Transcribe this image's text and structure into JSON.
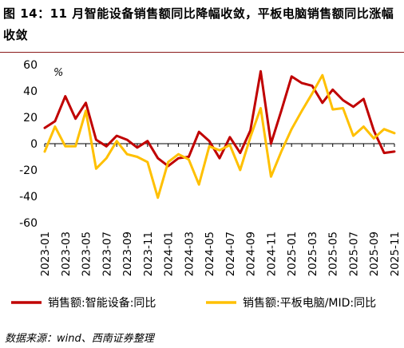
{
  "header": {
    "title": "图 14：11 月智能设备销售额同比降幅收敛，平板电脑销售额同比涨幅收敛"
  },
  "footer": {
    "source": "数据来源：wind、西南证券整理"
  },
  "colors": {
    "series_smart": "#c00000",
    "series_tablet": "#ffc000",
    "title_rule": "#8b1a1a"
  },
  "chart_data": {
    "type": "line",
    "unit_label": "%",
    "ylim": [
      -60,
      60
    ],
    "yticks": [
      60,
      40,
      20,
      0,
      -20,
      -40,
      -60
    ],
    "x": [
      "2023-01",
      "2023-02",
      "2023-03",
      "2023-04",
      "2023-05",
      "2023-06",
      "2023-07",
      "2023-08",
      "2023-09",
      "2023-10",
      "2023-11",
      "2023-12",
      "2024-01",
      "2024-02",
      "2024-03",
      "2024-04",
      "2024-05",
      "2024-06",
      "2024-07",
      "2024-08",
      "2024-09",
      "2024-10",
      "2024-11",
      "2024-12",
      "2025-01",
      "2025-02",
      "2025-03",
      "2025-04",
      "2025-05",
      "2025-06",
      "2025-07",
      "2025-08",
      "2025-09",
      "2025-10",
      "2025-11"
    ],
    "xtick_labels": [
      "2023-01",
      "2023-03",
      "2023-05",
      "2023-07",
      "2023-09",
      "2023-11",
      "2024-01",
      "2024-03",
      "2024-05",
      "2024-07",
      "2024-09",
      "2024-11",
      "2025-01",
      "2025-03",
      "2025-05",
      "2025-07",
      "2025-09",
      "2025-11"
    ],
    "grid": false,
    "legend_position": "bottom",
    "series": [
      {
        "name": "销售额:智能设备:同比",
        "color": "#c00000",
        "values": [
          12,
          17,
          36,
          19,
          31,
          3,
          -2,
          6,
          3,
          -3,
          2,
          -11,
          -17,
          -11,
          -10,
          9,
          2,
          -11,
          5,
          -7,
          10,
          55,
          0,
          25,
          51,
          46,
          44,
          31,
          41,
          33,
          28,
          34,
          10,
          -7,
          -6
        ]
      },
      {
        "name": "销售额:平板电脑/MID:同比",
        "color": "#ffc000",
        "values": [
          -6,
          13,
          -2,
          -2,
          25,
          -19,
          -11,
          2,
          -8,
          -10,
          -14,
          -41,
          -14,
          -8,
          -12,
          -31,
          -2,
          -5,
          -1,
          -20,
          5,
          27,
          -25,
          -6,
          11,
          25,
          38,
          52,
          26,
          27,
          6,
          13,
          4,
          11,
          8
        ]
      }
    ]
  }
}
